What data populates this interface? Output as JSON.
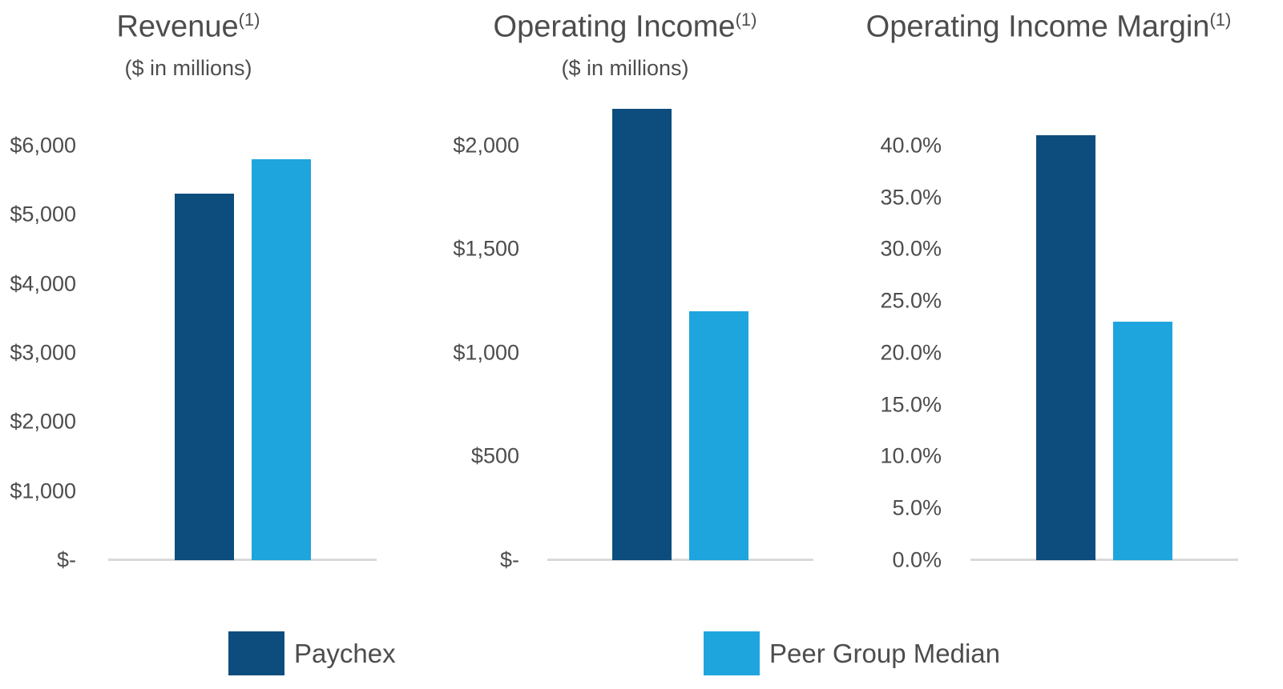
{
  "page": {
    "background": "#ffffff"
  },
  "colors": {
    "series": [
      "#0d4d7d",
      "#1ea5de"
    ],
    "text": "#4d4d4d",
    "baseline": "#d9d9d9"
  },
  "legend": {
    "items": [
      {
        "label": "Paychex",
        "color": "#0d4d7d"
      },
      {
        "label": "Peer Group Median",
        "color": "#1ea5de"
      }
    ]
  },
  "chart_data": [
    {
      "type": "bar",
      "title": "Revenue",
      "footnote_marker": "(1)",
      "subtitle": "($ in millions)",
      "categories": [
        "Paychex",
        "Peer Group Median"
      ],
      "values": [
        5300,
        5800
      ],
      "ylabel": "",
      "ylim": [
        0,
        6600
      ],
      "yticks": [
        {
          "value": 0,
          "label": "$-"
        },
        {
          "value": 1000,
          "label": "$1,000"
        },
        {
          "value": 2000,
          "label": "$2,000"
        },
        {
          "value": 3000,
          "label": "$3,000"
        },
        {
          "value": 4000,
          "label": "$4,000"
        },
        {
          "value": 5000,
          "label": "$5,000"
        },
        {
          "value": 6000,
          "label": "$6,000"
        }
      ],
      "grid": false,
      "legend_position": "shared-bottom"
    },
    {
      "type": "bar",
      "title": "Operating Income",
      "footnote_marker": "(1)",
      "subtitle": "($ in millions)",
      "categories": [
        "Paychex",
        "Peer Group Median"
      ],
      "values": [
        2175,
        1200
      ],
      "ylabel": "",
      "ylim": [
        0,
        2200
      ],
      "yticks": [
        {
          "value": 0,
          "label": "$-"
        },
        {
          "value": 500,
          "label": "$500"
        },
        {
          "value": 1000,
          "label": "$1,000"
        },
        {
          "value": 1500,
          "label": "$1,500"
        },
        {
          "value": 2000,
          "label": "$2,000"
        }
      ],
      "grid": false,
      "legend_position": "shared-bottom"
    },
    {
      "type": "bar",
      "title": "Operating Income Margin",
      "footnote_marker": "(1)",
      "subtitle": "",
      "categories": [
        "Paychex",
        "Peer Group Median"
      ],
      "values": [
        41,
        23
      ],
      "values_unit": "%",
      "ylabel": "",
      "ylim": [
        0,
        44
      ],
      "yticks": [
        {
          "value": 0,
          "label": "0.0%"
        },
        {
          "value": 5,
          "label": "5.0%"
        },
        {
          "value": 10,
          "label": "10.0%"
        },
        {
          "value": 15,
          "label": "15.0%"
        },
        {
          "value": 20,
          "label": "20.0%"
        },
        {
          "value": 25,
          "label": "25.0%"
        },
        {
          "value": 30,
          "label": "30.0%"
        },
        {
          "value": 35,
          "label": "35.0%"
        },
        {
          "value": 40,
          "label": "40.0%"
        }
      ],
      "grid": false,
      "legend_position": "shared-bottom"
    }
  ]
}
